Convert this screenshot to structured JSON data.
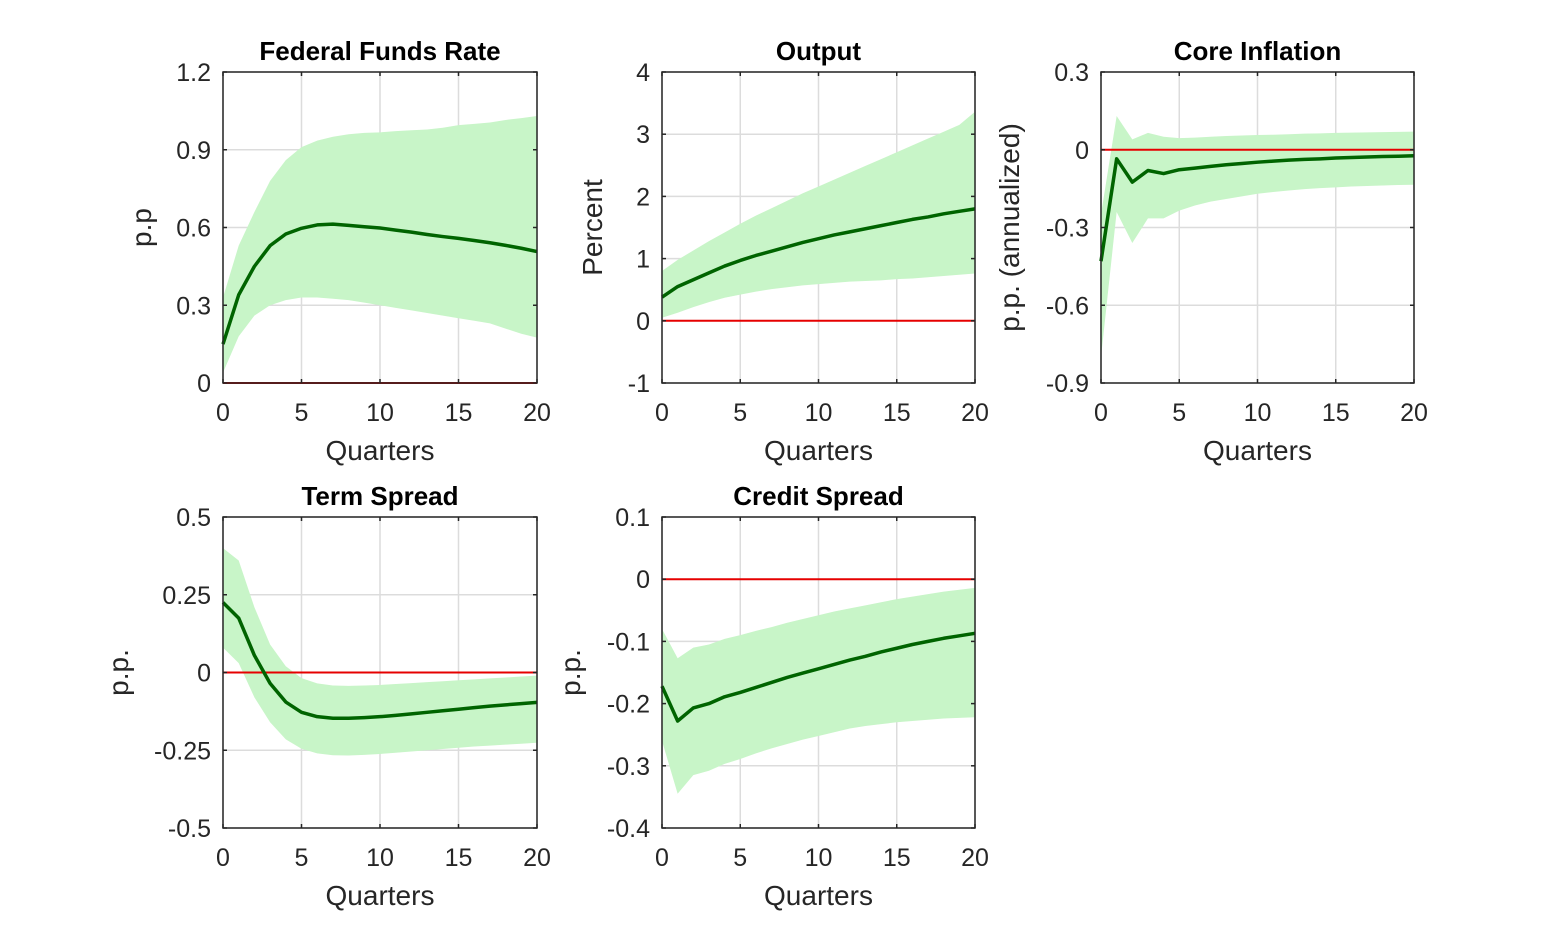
{
  "figure": {
    "background": "#ffffff"
  },
  "colors": {
    "band": "#c8f5c8",
    "line": "#006400",
    "zero_line": "#e60000",
    "grid": "#dcdcdc",
    "axis": "#262626"
  },
  "chart_data": [
    {
      "type": "area",
      "title": "Federal Funds Rate",
      "xlabel": "Quarters",
      "ylabel": "p.p",
      "xlim": [
        0,
        20
      ],
      "ylim": [
        0,
        1.2
      ],
      "xticks": [
        0,
        5,
        10,
        15,
        20
      ],
      "xtick_labels": [
        "0",
        "5",
        "10",
        "15",
        "20"
      ],
      "yticks": [
        0,
        0.3,
        0.6,
        0.9,
        1.2
      ],
      "ytick_labels": [
        "0",
        "0.3",
        "0.6",
        "0.9",
        "1.2"
      ],
      "grid": true,
      "reference_line": 0,
      "x": [
        0,
        1,
        2,
        3,
        4,
        5,
        6,
        7,
        8,
        9,
        10,
        11,
        12,
        13,
        14,
        15,
        16,
        17,
        18,
        19,
        20
      ],
      "series": [
        {
          "role": "median",
          "values": [
            0.15,
            0.34,
            0.45,
            0.53,
            0.575,
            0.597,
            0.61,
            0.613,
            0.608,
            0.603,
            0.598,
            0.59,
            0.582,
            0.573,
            0.565,
            0.558,
            0.55,
            0.541,
            0.531,
            0.52,
            0.507
          ]
        },
        {
          "role": "upper",
          "values": [
            0.33,
            0.53,
            0.66,
            0.78,
            0.86,
            0.91,
            0.935,
            0.95,
            0.96,
            0.965,
            0.967,
            0.972,
            0.975,
            0.978,
            0.985,
            0.995,
            1.0,
            1.005,
            1.015,
            1.022,
            1.03
          ]
        },
        {
          "role": "lower",
          "values": [
            0.04,
            0.18,
            0.26,
            0.3,
            0.32,
            0.33,
            0.33,
            0.325,
            0.32,
            0.31,
            0.3,
            0.29,
            0.28,
            0.27,
            0.26,
            0.25,
            0.24,
            0.23,
            0.21,
            0.19,
            0.175
          ]
        }
      ]
    },
    {
      "type": "area",
      "title": "Output",
      "xlabel": "Quarters",
      "ylabel": "Percent",
      "xlim": [
        0,
        20
      ],
      "ylim": [
        -1,
        4
      ],
      "xticks": [
        0,
        5,
        10,
        15,
        20
      ],
      "xtick_labels": [
        "0",
        "5",
        "10",
        "15",
        "20"
      ],
      "yticks": [
        -1,
        0,
        1,
        2,
        3,
        4
      ],
      "ytick_labels": [
        "-1",
        "0",
        "1",
        "2",
        "3",
        "4"
      ],
      "grid": true,
      "reference_line": 0,
      "x": [
        0,
        1,
        2,
        3,
        4,
        5,
        6,
        7,
        8,
        9,
        10,
        11,
        12,
        13,
        14,
        15,
        16,
        17,
        18,
        19,
        20
      ],
      "series": [
        {
          "role": "median",
          "values": [
            0.38,
            0.55,
            0.66,
            0.77,
            0.88,
            0.97,
            1.05,
            1.12,
            1.19,
            1.26,
            1.32,
            1.38,
            1.43,
            1.48,
            1.53,
            1.58,
            1.63,
            1.67,
            1.72,
            1.76,
            1.8
          ]
        },
        {
          "role": "upper",
          "values": [
            0.8,
            0.98,
            1.13,
            1.28,
            1.42,
            1.56,
            1.69,
            1.81,
            1.93,
            2.05,
            2.16,
            2.27,
            2.38,
            2.49,
            2.6,
            2.71,
            2.82,
            2.93,
            3.04,
            3.15,
            3.36
          ]
        },
        {
          "role": "lower",
          "values": [
            0.05,
            0.13,
            0.22,
            0.3,
            0.37,
            0.42,
            0.47,
            0.51,
            0.54,
            0.57,
            0.59,
            0.61,
            0.63,
            0.64,
            0.65,
            0.67,
            0.68,
            0.7,
            0.72,
            0.74,
            0.76
          ]
        }
      ]
    },
    {
      "type": "area",
      "title": "Core Inflation",
      "xlabel": "Quarters",
      "ylabel": "p.p. (annualized)",
      "xlim": [
        0,
        20
      ],
      "ylim": [
        -0.9,
        0.3
      ],
      "xticks": [
        0,
        5,
        10,
        15,
        20
      ],
      "xtick_labels": [
        "0",
        "5",
        "10",
        "15",
        "20"
      ],
      "yticks": [
        -0.9,
        -0.6,
        -0.3,
        0,
        0.3
      ],
      "ytick_labels": [
        "-0.9",
        "-0.6",
        "-0.3",
        "0",
        "0.3"
      ],
      "grid": true,
      "reference_line": 0,
      "x": [
        0,
        1,
        2,
        3,
        4,
        5,
        6,
        7,
        8,
        9,
        10,
        11,
        12,
        13,
        14,
        15,
        16,
        17,
        18,
        19,
        20
      ],
      "series": [
        {
          "role": "median",
          "values": [
            -0.43,
            -0.035,
            -0.125,
            -0.08,
            -0.092,
            -0.077,
            -0.071,
            -0.064,
            -0.058,
            -0.053,
            -0.048,
            -0.044,
            -0.04,
            -0.037,
            -0.035,
            -0.032,
            -0.03,
            -0.028,
            -0.026,
            -0.025,
            -0.023
          ]
        },
        {
          "role": "upper",
          "values": [
            -0.25,
            0.13,
            0.04,
            0.065,
            0.05,
            0.045,
            0.047,
            0.05,
            0.053,
            0.055,
            0.057,
            0.058,
            0.06,
            0.062,
            0.063,
            0.065,
            0.066,
            0.067,
            0.068,
            0.069,
            0.07
          ]
        },
        {
          "role": "lower",
          "values": [
            -0.8,
            -0.24,
            -0.36,
            -0.265,
            -0.265,
            -0.235,
            -0.215,
            -0.2,
            -0.19,
            -0.18,
            -0.17,
            -0.163,
            -0.157,
            -0.152,
            -0.148,
            -0.145,
            -0.142,
            -0.14,
            -0.138,
            -0.136,
            -0.135
          ]
        }
      ]
    },
    {
      "type": "area",
      "title": "Term Spread",
      "xlabel": "Quarters",
      "ylabel": "p.p.",
      "xlim": [
        0,
        20
      ],
      "ylim": [
        -0.5,
        0.5
      ],
      "xticks": [
        0,
        5,
        10,
        15,
        20
      ],
      "xtick_labels": [
        "0",
        "5",
        "10",
        "15",
        "20"
      ],
      "yticks": [
        -0.5,
        -0.25,
        0,
        0.25,
        0.5
      ],
      "ytick_labels": [
        "-0.5",
        "-0.25",
        "0",
        "0.25",
        "0.5"
      ],
      "grid": true,
      "reference_line": 0,
      "x": [
        0,
        1,
        2,
        3,
        4,
        5,
        6,
        7,
        8,
        9,
        10,
        11,
        12,
        13,
        14,
        15,
        16,
        17,
        18,
        19,
        20
      ],
      "series": [
        {
          "role": "median",
          "values": [
            0.225,
            0.175,
            0.055,
            -0.035,
            -0.095,
            -0.128,
            -0.142,
            -0.147,
            -0.147,
            -0.145,
            -0.142,
            -0.138,
            -0.133,
            -0.128,
            -0.123,
            -0.118,
            -0.113,
            -0.108,
            -0.104,
            -0.1,
            -0.096
          ]
        },
        {
          "role": "upper",
          "values": [
            0.4,
            0.36,
            0.21,
            0.09,
            0.02,
            -0.018,
            -0.035,
            -0.042,
            -0.043,
            -0.042,
            -0.04,
            -0.037,
            -0.034,
            -0.031,
            -0.028,
            -0.025,
            -0.022,
            -0.019,
            -0.016,
            -0.013,
            -0.01
          ]
        },
        {
          "role": "lower",
          "values": [
            0.08,
            0.03,
            -0.08,
            -0.16,
            -0.215,
            -0.245,
            -0.26,
            -0.266,
            -0.267,
            -0.265,
            -0.262,
            -0.258,
            -0.254,
            -0.25,
            -0.246,
            -0.242,
            -0.238,
            -0.235,
            -0.232,
            -0.229,
            -0.226
          ]
        }
      ]
    },
    {
      "type": "area",
      "title": "Credit Spread",
      "xlabel": "Quarters",
      "ylabel": "p.p.",
      "xlim": [
        0,
        20
      ],
      "ylim": [
        -0.4,
        0.1
      ],
      "xticks": [
        0,
        5,
        10,
        15,
        20
      ],
      "xtick_labels": [
        "0",
        "5",
        "10",
        "15",
        "20"
      ],
      "yticks": [
        -0.4,
        -0.3,
        -0.2,
        -0.1,
        0,
        0.1
      ],
      "ytick_labels": [
        "-0.4",
        "-0.3",
        "-0.2",
        "-0.1",
        "0",
        "0.1"
      ],
      "grid": true,
      "reference_line": 0,
      "x": [
        0,
        1,
        2,
        3,
        4,
        5,
        6,
        7,
        8,
        9,
        10,
        11,
        12,
        13,
        14,
        15,
        16,
        17,
        18,
        19,
        20
      ],
      "series": [
        {
          "role": "median",
          "values": [
            -0.172,
            -0.228,
            -0.207,
            -0.2,
            -0.189,
            -0.182,
            -0.174,
            -0.166,
            -0.158,
            -0.151,
            -0.144,
            -0.137,
            -0.13,
            -0.124,
            -0.117,
            -0.111,
            -0.105,
            -0.1,
            -0.095,
            -0.091,
            -0.087
          ]
        },
        {
          "role": "upper",
          "values": [
            -0.08,
            -0.127,
            -0.11,
            -0.105,
            -0.096,
            -0.09,
            -0.083,
            -0.077,
            -0.07,
            -0.064,
            -0.058,
            -0.052,
            -0.047,
            -0.042,
            -0.037,
            -0.032,
            -0.028,
            -0.024,
            -0.02,
            -0.017,
            -0.014
          ]
        },
        {
          "role": "lower",
          "values": [
            -0.26,
            -0.345,
            -0.315,
            -0.308,
            -0.297,
            -0.289,
            -0.28,
            -0.272,
            -0.265,
            -0.258,
            -0.252,
            -0.246,
            -0.24,
            -0.236,
            -0.233,
            -0.23,
            -0.228,
            -0.226,
            -0.224,
            -0.223,
            -0.222
          ]
        }
      ]
    }
  ]
}
